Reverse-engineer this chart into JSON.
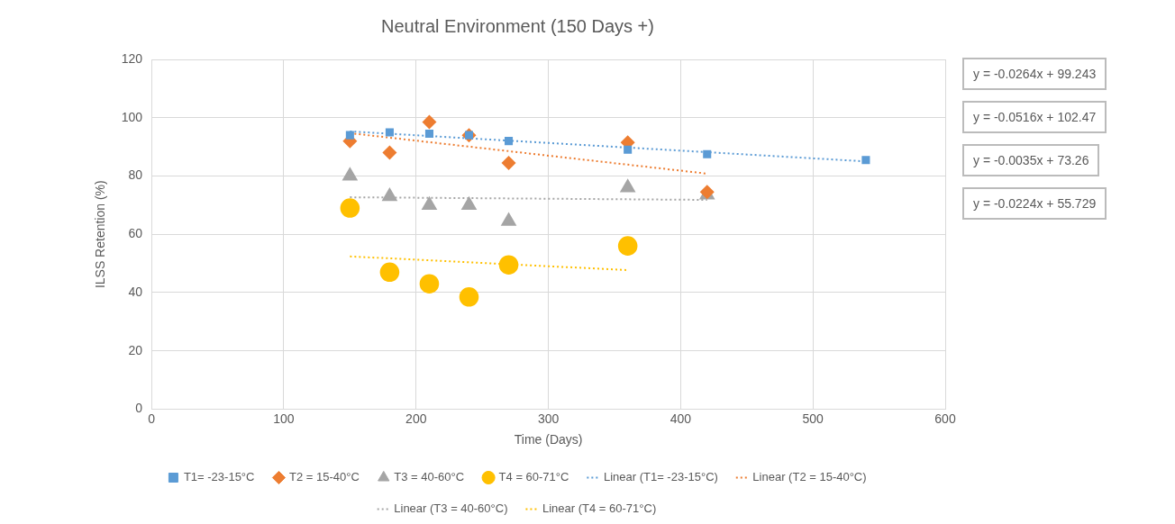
{
  "chart_data": {
    "type": "scatter",
    "title": "Neutral Environment (150 Days +)",
    "xlabel": "Time (Days)",
    "ylabel": "ILSS Retention (%)",
    "xlim": [
      0,
      600
    ],
    "xticks": [
      0,
      100,
      200,
      300,
      400,
      500,
      600
    ],
    "ylim": [
      0,
      120
    ],
    "yticks": [
      0,
      20,
      40,
      60,
      80,
      100,
      120
    ],
    "grid": true,
    "legend": "bottom",
    "series": [
      {
        "name": "T1= -23-15°C",
        "color": "#5b9bd5",
        "marker": "square",
        "x": [
          150,
          180,
          210,
          240,
          270,
          360,
          420,
          540
        ],
        "values": [
          94,
          95,
          94.5,
          94,
          92,
          89,
          87.5,
          85.5
        ]
      },
      {
        "name": "T2 = 15-40°C",
        "color": "#ed7d31",
        "marker": "diamond",
        "x": [
          150,
          180,
          210,
          240,
          270,
          360,
          420
        ],
        "values": [
          92,
          88,
          98.5,
          94,
          84.5,
          91.5,
          74.5
        ]
      },
      {
        "name": "T3 = 40-60°C",
        "color": "#a5a5a5",
        "marker": "triangle",
        "x": [
          150,
          180,
          210,
          240,
          270,
          360,
          420
        ],
        "values": [
          80,
          73,
          70,
          70,
          64.5,
          76,
          73.5
        ]
      },
      {
        "name": "T4 = 60-71°C",
        "color": "#ffc000",
        "marker": "circle",
        "x": [
          150,
          180,
          210,
          240,
          270,
          360
        ],
        "values": [
          69,
          47,
          43,
          38.5,
          49.5,
          56
        ]
      },
      {
        "name": "Linear (T1= -23-15°C)",
        "type": "line",
        "color": "#5b9bd5",
        "marker": "none",
        "line_style": "dotted",
        "x": [
          150,
          540
        ],
        "values": [
          95.3,
          85
        ]
      },
      {
        "name": "Linear (T2 = 15-40°C)",
        "type": "line",
        "color": "#ed7d31",
        "marker": "none",
        "line_style": "dotted",
        "x": [
          150,
          420
        ],
        "values": [
          94.7,
          80.8
        ]
      },
      {
        "name": "Linear (T3 = 40-60°C)",
        "type": "line",
        "color": "#a5a5a5",
        "marker": "none",
        "line_style": "dotted",
        "x": [
          150,
          420
        ],
        "values": [
          72.7,
          71.8
        ]
      },
      {
        "name": "Linear (T4 = 60-71°C)",
        "type": "line",
        "color": "#ffc000",
        "marker": "none",
        "line_style": "dotted",
        "x": [
          150,
          360
        ],
        "values": [
          52.4,
          47.7
        ]
      }
    ],
    "annotations": [
      "y = -0.0264x + 99.243",
      "y = -0.0516x + 102.47",
      "y = -0.0035x + 73.26",
      "y = -0.0224x + 55.729"
    ]
  }
}
